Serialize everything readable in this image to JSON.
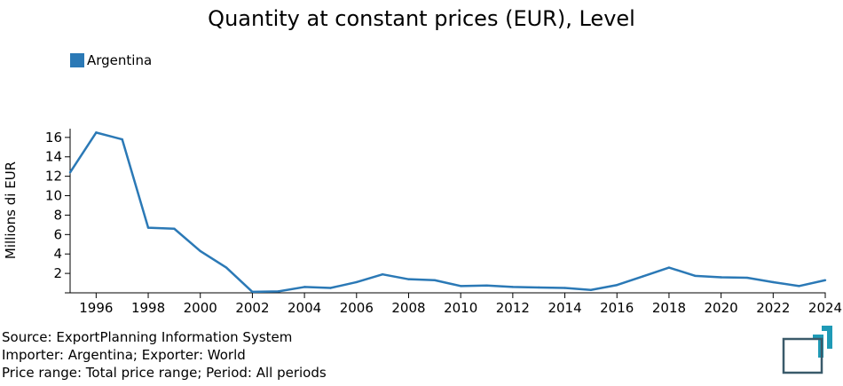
{
  "colors": {
    "series": "#2b79b6",
    "logo_teal": "#1f9ab6",
    "logo_slate": "#3a5a6a"
  },
  "icons": {
    "logo": "exportplanning-logo-icon"
  },
  "footnotes": {
    "source": "Source: ExportPlanning Information System",
    "importer_exporter": "Importer: Argentina; Exporter: World",
    "price_range": "Price range: Total price range; Period: All periods"
  },
  "chart_data": {
    "type": "line",
    "title": "Quantity at constant prices (EUR), Level",
    "xlabel": "",
    "ylabel": "Millions di EUR",
    "x": [
      1995,
      1996,
      1997,
      1998,
      1999,
      2000,
      2001,
      2002,
      2003,
      2004,
      2005,
      2006,
      2007,
      2008,
      2009,
      2010,
      2011,
      2012,
      2013,
      2014,
      2015,
      2016,
      2017,
      2018,
      2019,
      2020,
      2021,
      2022,
      2023,
      2024
    ],
    "series": [
      {
        "name": "Argentina",
        "values": [
          12.4,
          16.5,
          15.8,
          6.7,
          6.6,
          4.3,
          2.6,
          0.1,
          0.15,
          0.6,
          0.5,
          1.1,
          1.9,
          1.4,
          1.3,
          0.7,
          0.75,
          0.6,
          0.55,
          0.5,
          0.3,
          0.8,
          1.7,
          2.6,
          1.75,
          1.6,
          1.55,
          1.1,
          0.7,
          1.3
        ]
      }
    ],
    "xlim": [
      1995,
      2024
    ],
    "ylim": [
      0,
      16.9
    ],
    "x_ticks": [
      "1996",
      "1998",
      "2000",
      "2002",
      "2004",
      "2006",
      "2008",
      "2010",
      "2012",
      "2014",
      "2016",
      "2018",
      "2020",
      "2022",
      "2024"
    ],
    "y_ticks": [
      "2",
      "4",
      "6",
      "8",
      "10",
      "12",
      "14",
      "16"
    ],
    "grid": false,
    "legend_position": "top-left"
  }
}
